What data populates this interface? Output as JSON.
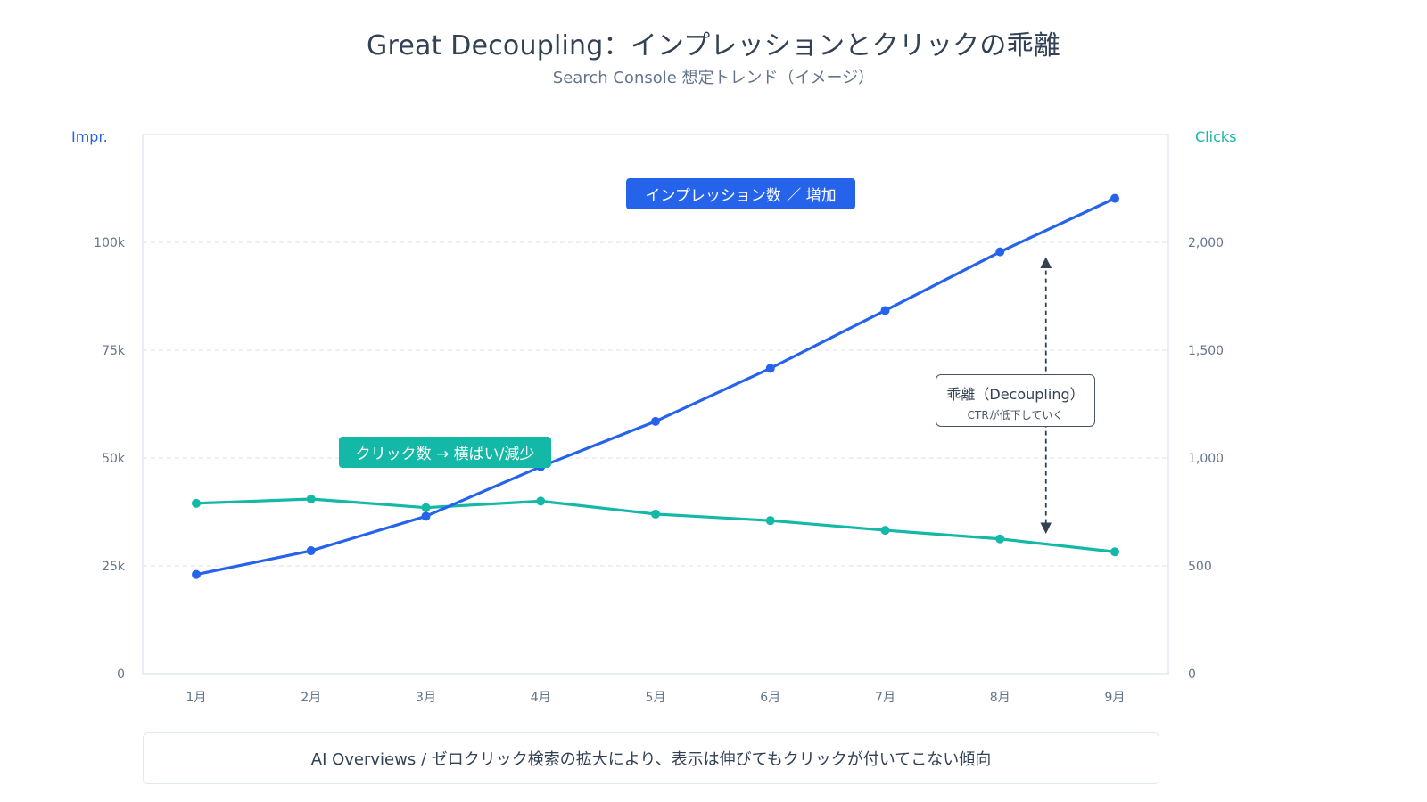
{
  "header": {
    "title": "Great Decoupling：インプレッションとクリックの乖離",
    "subtitle": "Search Console 想定トレンド（イメージ）"
  },
  "colors": {
    "impressions": "#2563eb",
    "clicks": "#14b8a6",
    "annotation": "#334155",
    "grid": "#e2e8f0"
  },
  "annotations": {
    "impr_tag": "インプレッション数 ／ 増加",
    "clicks_tag": "クリック数 → 横ばい/減少",
    "gap_title": "乖離（Decoupling）",
    "gap_subtitle": "CTRが低下していく"
  },
  "footer": {
    "note": "AI Overviews / ゼロクリック検索の拡大により、表示は伸びてもクリックが付いてこない傾向"
  },
  "chart_data": {
    "type": "line",
    "title": "Great Decoupling：インプレッションとクリックの乖離",
    "subtitle": "Search Console 想定トレンド（イメージ）",
    "categories": [
      "1月",
      "2月",
      "3月",
      "4月",
      "5月",
      "6月",
      "7月",
      "8月",
      "9月"
    ],
    "y_left": {
      "label": "Impr.",
      "ylim": [
        0,
        125000
      ],
      "ticks": [
        0,
        25000,
        50000,
        75000,
        100000
      ],
      "tick_labels": [
        "0",
        "25k",
        "50k",
        "75k",
        "100k"
      ]
    },
    "y_right": {
      "label": "Clicks",
      "ylim": [
        0,
        2500
      ],
      "ticks": [
        0,
        500,
        1000,
        1500,
        2000
      ],
      "tick_labels": [
        "0",
        "500",
        "1,000",
        "1,500",
        "2,000"
      ]
    },
    "series": [
      {
        "name": "インプレッション数",
        "axis": "left",
        "color": "#2563eb",
        "values": [
          23000,
          28500,
          36500,
          48000,
          58500,
          70800,
          84200,
          97800,
          110200
        ]
      },
      {
        "name": "クリック数",
        "axis": "right",
        "color": "#14b8a6",
        "values": [
          790,
          810,
          770,
          800,
          740,
          710,
          665,
          625,
          565
        ]
      }
    ],
    "grid": true,
    "gap_arrow_between": [
      "8月",
      "9月"
    ]
  }
}
